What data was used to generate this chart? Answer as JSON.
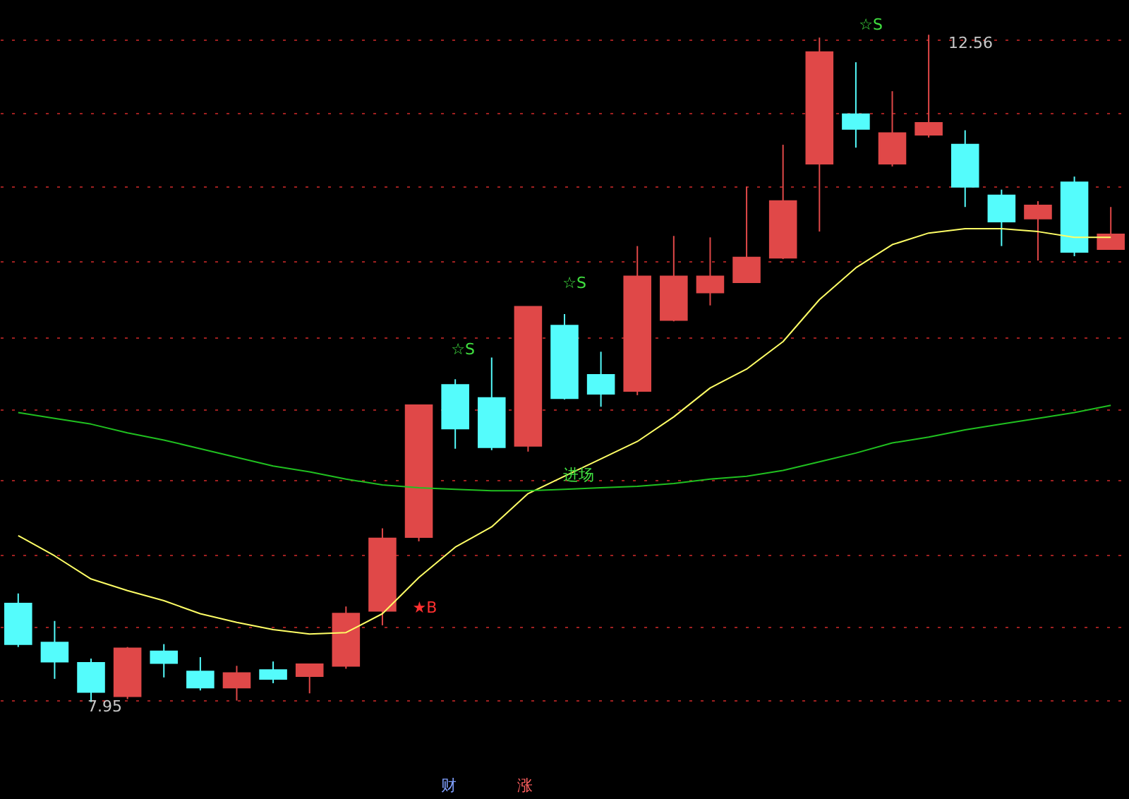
{
  "chart_data": {
    "type": "candlestick",
    "categories": [
      null,
      null,
      null,
      null,
      null,
      null,
      null,
      null,
      null,
      null,
      null,
      null,
      null,
      null,
      null,
      null,
      null,
      null,
      null,
      null,
      null,
      null,
      null,
      null,
      null,
      null,
      null,
      null,
      null,
      null,
      null
    ],
    "ohlc": [
      [
        8.63,
        8.7,
        8.33,
        8.35
      ],
      [
        8.36,
        8.51,
        8.11,
        8.23
      ],
      [
        8.22,
        8.25,
        7.95,
        8.02
      ],
      [
        7.99,
        8.33,
        7.97,
        8.32
      ],
      [
        8.3,
        8.35,
        8.12,
        8.22
      ],
      [
        8.16,
        8.26,
        8.03,
        8.05
      ],
      [
        8.05,
        8.2,
        7.96,
        8.15
      ],
      [
        8.17,
        8.23,
        8.08,
        8.11
      ],
      [
        8.13,
        8.21,
        8.01,
        8.21
      ],
      [
        8.2,
        8.61,
        8.18,
        8.56
      ],
      [
        8.58,
        9.15,
        8.48,
        9.08
      ],
      [
        9.09,
        10.0,
        9.06,
        10.0
      ],
      [
        10.14,
        10.18,
        9.7,
        9.84
      ],
      [
        10.05,
        10.33,
        9.69,
        9.71
      ],
      [
        9.72,
        10.68,
        9.68,
        10.68
      ],
      [
        10.55,
        10.63,
        10.04,
        10.05
      ],
      [
        10.21,
        10.37,
        9.99,
        10.08
      ],
      [
        10.1,
        11.1,
        10.07,
        10.89
      ],
      [
        10.59,
        11.17,
        10.58,
        10.89
      ],
      [
        10.78,
        11.16,
        10.69,
        10.89
      ],
      [
        10.85,
        11.51,
        10.85,
        11.02
      ],
      [
        11.02,
        11.8,
        11.01,
        11.41
      ],
      [
        11.67,
        12.54,
        11.2,
        12.44
      ],
      [
        12.01,
        12.37,
        11.78,
        11.91
      ],
      [
        11.67,
        12.17,
        11.65,
        11.88
      ],
      [
        11.87,
        12.56,
        11.85,
        11.95
      ],
      [
        11.8,
        11.9,
        11.37,
        11.51
      ],
      [
        11.45,
        11.49,
        11.1,
        11.27
      ],
      [
        11.29,
        11.41,
        11.0,
        11.38
      ],
      [
        11.54,
        11.58,
        11.03,
        11.06
      ],
      [
        11.08,
        11.37,
        11.08,
        11.18
      ]
    ],
    "colors": [
      "#54fcfc",
      "#54fcfc",
      "#54fcfc",
      "#e04848",
      "#54fcfc",
      "#54fcfc",
      "#e04848",
      "#54fcfc",
      "#e04848",
      "#e04848",
      "#e04848",
      "#e04848",
      "#54fcfc",
      "#54fcfc",
      "#e04848",
      "#54fcfc",
      "#54fcfc",
      "#e04848",
      "#e04848",
      "#e04848",
      "#e04848",
      "#e04848",
      "#e04848",
      "#54fcfc",
      "#e04848",
      "#e04848",
      "#54fcfc",
      "#54fcfc",
      "#e04848",
      "#54fcfc",
      "#e04848"
    ],
    "series": [
      {
        "type": "line",
        "color": "#ffff66",
        "values": [
          9.1,
          8.96,
          8.8,
          8.72,
          8.65,
          8.56,
          8.5,
          8.45,
          8.42,
          8.43,
          8.56,
          8.81,
          9.02,
          9.16,
          9.39,
          9.51,
          9.63,
          9.75,
          9.92,
          10.12,
          10.25,
          10.44,
          10.73,
          10.95,
          11.11,
          11.19,
          11.22,
          11.22,
          11.2,
          11.16,
          11.16
        ]
      },
      {
        "type": "line",
        "color": "#20c020",
        "values": [
          9.95,
          9.91,
          9.87,
          9.81,
          9.76,
          9.7,
          9.64,
          9.58,
          9.54,
          9.49,
          9.45,
          9.43,
          9.42,
          9.41,
          9.41,
          9.42,
          9.43,
          9.44,
          9.46,
          9.49,
          9.51,
          9.55,
          9.61,
          9.67,
          9.74,
          9.78,
          9.83,
          9.87,
          9.91,
          9.95,
          10.0
        ]
      }
    ],
    "ylim": [
      7.28,
      12.8
    ],
    "yticks": [
      {
        "value": 7.96,
        "label": null
      },
      {
        "value": 8.47,
        "label": null
      },
      {
        "value": 8.97,
        "label": null
      },
      {
        "value": 9.48,
        "label": null
      },
      {
        "value": 9.97,
        "label": null
      },
      {
        "value": 10.47,
        "label": null
      },
      {
        "value": 11.0,
        "label": null
      },
      {
        "value": 11.51,
        "label": null
      },
      {
        "value": 12.02,
        "label": null
      },
      {
        "value": 12.53,
        "label": null
      }
    ],
    "grid": "y",
    "annotations": [
      "7.95",
      "12.56",
      "☆S",
      "☆S",
      "☆S",
      "★B",
      "进场",
      "财",
      "涨"
    ]
  }
}
